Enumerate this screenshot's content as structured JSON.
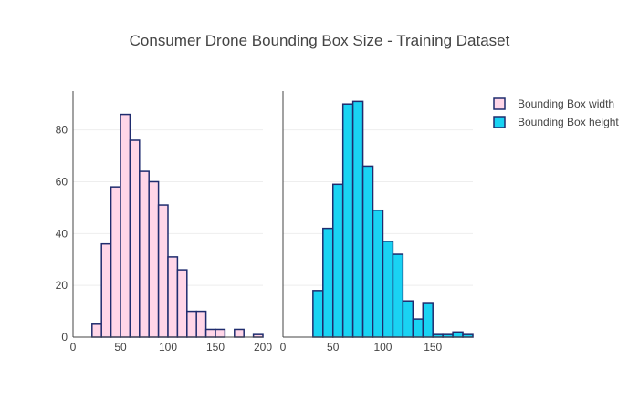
{
  "chart_data": {
    "type": "bar",
    "title": "Consumer Drone Bounding Box Size - Training Dataset",
    "legend_position": "top-right",
    "grid": true,
    "panels": [
      {
        "series_name": "Bounding Box width",
        "color": "#ffd6e8",
        "edge_color": "#1f2c6e",
        "bin_width": 10,
        "bin_starts": [
          20,
          30,
          40,
          50,
          60,
          70,
          80,
          90,
          100,
          110,
          120,
          130,
          140,
          150,
          160,
          170,
          180,
          190
        ],
        "counts": [
          5,
          36,
          58,
          86,
          76,
          64,
          60,
          51,
          31,
          26,
          10,
          10,
          3,
          3,
          0,
          3,
          0,
          1
        ],
        "xlim": [
          0,
          200
        ],
        "xticks": [
          0,
          50,
          100,
          150,
          200
        ],
        "ylim": [
          0,
          95
        ],
        "yticks": [
          0,
          20,
          40,
          60,
          80
        ]
      },
      {
        "series_name": "Bounding Box height",
        "color": "#19d3f3",
        "edge_color": "#1f2c6e",
        "bin_width": 10,
        "bin_starts": [
          30,
          40,
          50,
          60,
          70,
          80,
          90,
          100,
          110,
          120,
          130,
          140,
          150,
          160,
          170,
          180
        ],
        "counts": [
          18,
          42,
          59,
          90,
          91,
          66,
          49,
          37,
          32,
          14,
          7,
          13,
          1,
          1,
          2,
          1
        ],
        "xlim": [
          0,
          190
        ],
        "xticks": [
          0,
          50,
          100,
          150
        ],
        "ylim": [
          0,
          95
        ],
        "yticks": [
          0,
          20,
          40,
          60,
          80
        ]
      }
    ]
  }
}
